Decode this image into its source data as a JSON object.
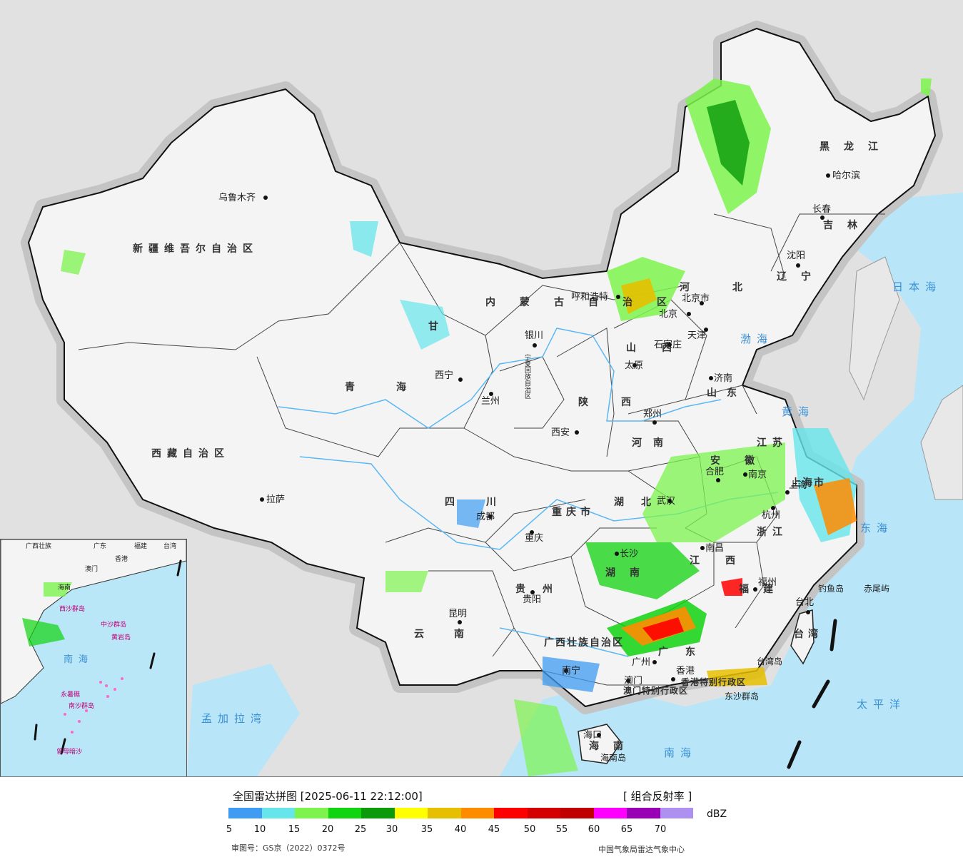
{
  "map": {
    "sea_labels": [
      "日本海",
      "渤海",
      "黄海",
      "东海",
      "太平洋",
      "南海",
      "孟加拉湾"
    ],
    "region_labels": [
      "新疆维吾尔自治区",
      "西藏自治区",
      "青海",
      "甘",
      "内蒙古自治区",
      "黑龙江",
      "吉林",
      "辽宁",
      "河北",
      "山西",
      "山东",
      "陕西",
      "河南",
      "江苏",
      "安徽",
      "湖北",
      "四川",
      "重庆市",
      "贵州",
      "云南",
      "湖南",
      "江西",
      "浙江",
      "福建",
      "广东",
      "广西壮族自治区",
      "海南",
      "台湾",
      "上海市",
      "宁夏回族自治区",
      "香港特别行政区",
      "澳门特别行政区"
    ],
    "cities": [
      "乌鲁木齐",
      "拉萨",
      "西宁",
      "兰州",
      "银川",
      "呼和浩特",
      "北京",
      "北京市",
      "天津",
      "石家庄",
      "太原",
      "济南",
      "郑州",
      "西安",
      "成都",
      "重庆",
      "武汉",
      "合肥",
      "南京",
      "上海",
      "杭州",
      "南昌",
      "长沙",
      "福州",
      "台北",
      "广州",
      "香港",
      "澳门",
      "南宁",
      "海口",
      "贵阳",
      "昆明",
      "沈阳",
      "长春",
      "哈尔滨"
    ],
    "islands": [
      "钓鱼岛",
      "赤尾屿",
      "台湾岛",
      "东沙群岛",
      "海南岛"
    ],
    "inset_labels": [
      "广西壮族",
      "广东",
      "福建",
      "台湾",
      "香港",
      "澳门",
      "海南",
      "西沙群岛",
      "中沙群岛",
      "黄岩岛",
      "南海",
      "永暑礁",
      "南沙群岛",
      "曾母暗沙"
    ]
  },
  "legend": {
    "title": "全国雷达拼图 [2025-06-11 22:12:00]",
    "product": "[ 组合反射率 ]",
    "unit": "dBZ",
    "ticks": [
      "5",
      "10",
      "15",
      "20",
      "25",
      "30",
      "35",
      "40",
      "45",
      "50",
      "55",
      "60",
      "65",
      "70"
    ],
    "colors": [
      "#3f9cf2",
      "#66e6ea",
      "#7cf44d",
      "#10d40f",
      "#0a9a0a",
      "#ffff00",
      "#e6c000",
      "#ff8c00",
      "#ff0000",
      "#d40000",
      "#c00000",
      "#ff00ff",
      "#9900b5",
      "#ad90f0"
    ],
    "approval": "审图号：GS京（2022）0372号",
    "source": "中国气象局雷达气象中心"
  }
}
